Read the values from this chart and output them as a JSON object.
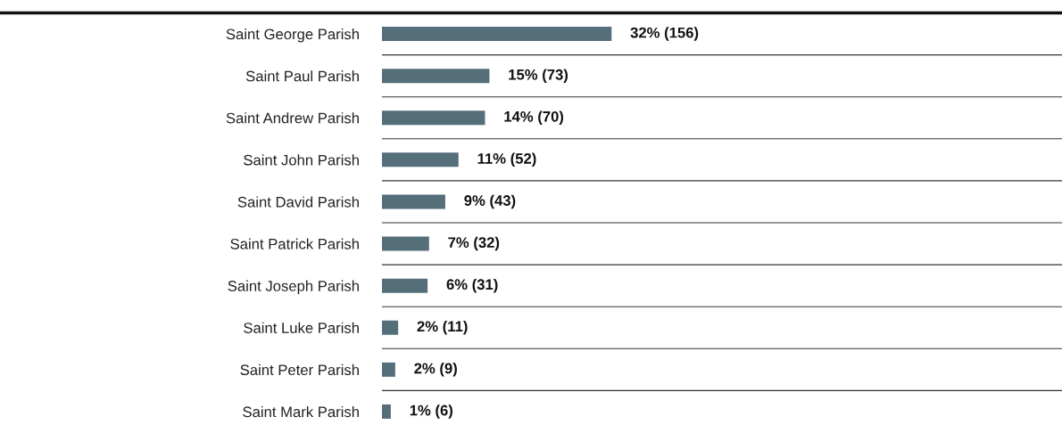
{
  "chart_data": {
    "type": "bar",
    "orientation": "horizontal",
    "categories": [
      "Saint George Parish",
      "Saint Paul Parish",
      "Saint Andrew Parish",
      "Saint John Parish",
      "Saint David Parish",
      "Saint Patrick Parish",
      "Saint Joseph Parish",
      "Saint Luke Parish",
      "Saint Peter Parish",
      "Saint Mark Parish"
    ],
    "values": [
      156,
      73,
      70,
      52,
      43,
      32,
      31,
      11,
      9,
      6
    ],
    "value_labels": [
      "32% (156)",
      "15% (73)",
      "14% (70)",
      "11% (52)",
      "9% (43)",
      "7% (32)",
      "6% (31)",
      "2% (11)",
      "2% (9)",
      "1% (6)"
    ],
    "color": "#546e7a",
    "xlim": [
      0,
      462
    ],
    "grid": "y",
    "legend": false
  }
}
